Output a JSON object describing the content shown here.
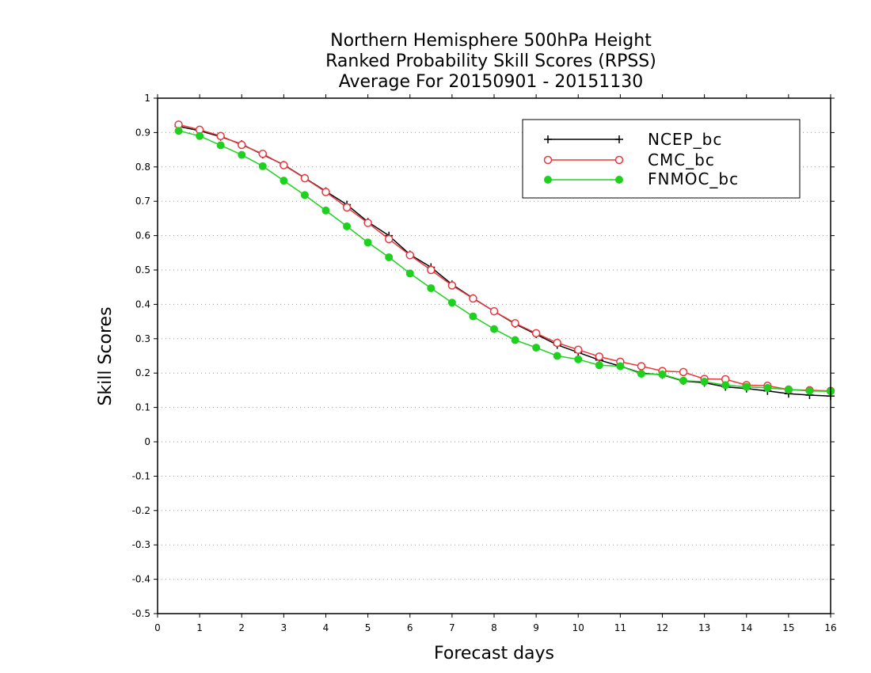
{
  "chart_data": {
    "type": "line",
    "title": [
      "Northern Hemisphere 500hPa Height",
      "Ranked Probability Skill Scores (RPSS)",
      "Average For 20150901 - 20151130"
    ],
    "xlabel": "Forecast days",
    "ylabel": "Skill Scores",
    "xlim": [
      0,
      16
    ],
    "ylim": [
      -0.5,
      1
    ],
    "xticks": [
      0,
      1,
      2,
      3,
      4,
      5,
      6,
      7,
      8,
      9,
      10,
      11,
      12,
      13,
      14,
      15,
      16
    ],
    "yticks": [
      -0.5,
      -0.4,
      -0.3,
      -0.2,
      -0.1,
      0,
      0.1,
      0.2,
      0.3,
      0.4,
      0.5,
      0.6,
      0.7,
      0.8,
      0.9,
      1
    ],
    "grid": "horizontal-dotted",
    "legend_position": "top-right",
    "x": [
      0.5,
      1,
      1.5,
      2,
      2.5,
      3,
      3.5,
      4,
      4.5,
      5,
      5.5,
      6,
      6.5,
      7,
      7.5,
      8,
      8.5,
      9,
      9.5,
      10,
      10.5,
      11,
      11.5,
      12,
      12.5,
      13,
      13.5,
      14,
      14.5,
      15,
      15.5,
      16
    ],
    "series": [
      {
        "name": "NCEP_bc",
        "color": "#000000",
        "marker": "plus",
        "values": [
          0.918,
          0.905,
          0.888,
          0.866,
          0.836,
          0.806,
          0.768,
          0.729,
          0.69,
          0.64,
          0.6,
          0.545,
          0.508,
          0.458,
          0.418,
          0.38,
          0.343,
          0.313,
          0.282,
          0.26,
          0.238,
          0.22,
          0.2,
          0.195,
          0.177,
          0.172,
          0.16,
          0.155,
          0.148,
          0.14,
          0.136,
          0.133
        ]
      },
      {
        "name": "CMC_bc",
        "color": "#e8383d",
        "marker": "open-circle",
        "values": [
          0.923,
          0.908,
          0.89,
          0.864,
          0.838,
          0.805,
          0.767,
          0.727,
          0.682,
          0.637,
          0.59,
          0.543,
          0.5,
          0.455,
          0.417,
          0.38,
          0.345,
          0.316,
          0.288,
          0.268,
          0.248,
          0.233,
          0.22,
          0.206,
          0.203,
          0.183,
          0.182,
          0.165,
          0.163,
          0.152,
          0.15,
          0.148
        ]
      },
      {
        "name": "FNMOC_bc",
        "color": "#1fd11f",
        "marker": "filled-circle",
        "values": [
          0.905,
          0.89,
          0.863,
          0.835,
          0.802,
          0.76,
          0.718,
          0.673,
          0.627,
          0.58,
          0.537,
          0.49,
          0.447,
          0.405,
          0.365,
          0.328,
          0.296,
          0.274,
          0.25,
          0.24,
          0.223,
          0.22,
          0.198,
          0.196,
          0.178,
          0.175,
          0.165,
          0.16,
          0.157,
          0.152,
          0.148,
          0.147
        ]
      }
    ]
  }
}
